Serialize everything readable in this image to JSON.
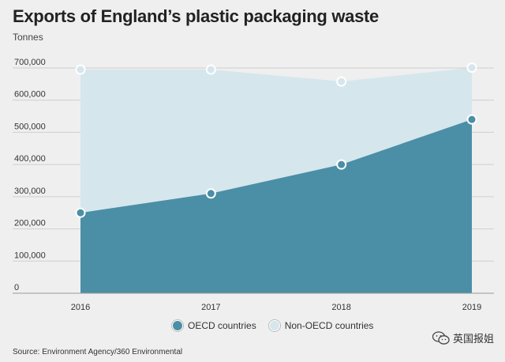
{
  "chart_data": {
    "type": "area",
    "title": "Exports of England’s plastic packaging waste",
    "subtitle": "Tonnes",
    "x": [
      "2016",
      "2017",
      "2018",
      "2019"
    ],
    "ylim": [
      0,
      700000
    ],
    "yticks": [
      "0",
      "100,000",
      "200,000",
      "300,000",
      "400,000",
      "500,000",
      "600,000",
      "700,000"
    ],
    "stacked": true,
    "grid": true,
    "legend_position": "bottom",
    "series": [
      {
        "name": "OECD countries",
        "color": "#4a8fa6",
        "values": [
          250000,
          310000,
          400000,
          540000
        ]
      },
      {
        "name": "Non-OECD countries",
        "color": "#d6e6ed",
        "values": [
          445000,
          385000,
          258000,
          161000
        ]
      }
    ],
    "source": "Source: Environment Agency/360 Environmental"
  },
  "watermark": {
    "text": "英国报姐",
    "icon": "wechat-icon"
  }
}
